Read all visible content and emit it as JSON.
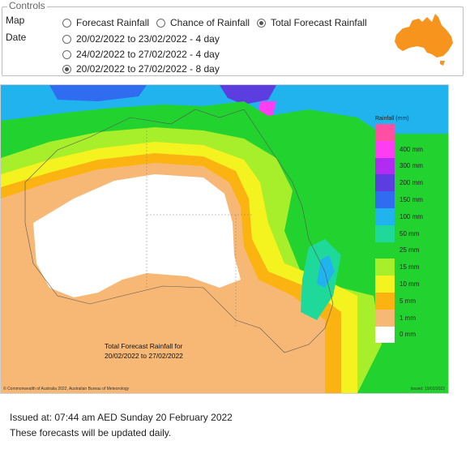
{
  "controls": {
    "legend": "Controls",
    "map_label": "Map",
    "date_label": "Date",
    "map_options": [
      {
        "label": "Forecast Rainfall",
        "selected": false
      },
      {
        "label": "Chance of Rainfall",
        "selected": false
      },
      {
        "label": "Total Forecast Rainfall",
        "selected": true
      }
    ],
    "date_options": [
      {
        "label": "20/02/2022 to 23/02/2022 - 4 day",
        "selected": false
      },
      {
        "label": "24/02/2022 to 27/02/2022 - 4 day",
        "selected": false
      },
      {
        "label": "20/02/2022 to 27/02/2022 - 8 day",
        "selected": true
      }
    ],
    "australia_icon_color": "#f7941d"
  },
  "map": {
    "legend_title": "Rainfall (mm)",
    "legend": [
      {
        "label": "",
        "color": "#ff4fa3"
      },
      {
        "label": "400 mm",
        "color": "#ff3df2"
      },
      {
        "label": "300 mm",
        "color": "#b12cf0"
      },
      {
        "label": "200 mm",
        "color": "#5b3de0"
      },
      {
        "label": "150 mm",
        "color": "#2f6cf0"
      },
      {
        "label": "100 mm",
        "color": "#20b3ee"
      },
      {
        "label": "50 mm",
        "color": "#1fd99a"
      },
      {
        "label": "25 mm",
        "color": "#22d32f"
      },
      {
        "label": "15 mm",
        "color": "#a6ef2a"
      },
      {
        "label": "10 mm",
        "color": "#f4f21f"
      },
      {
        "label": "5 mm",
        "color": "#fbb311"
      },
      {
        "label": "1 mm",
        "color": "#f7b876"
      },
      {
        "label": "0 mm",
        "color": "#ffffff"
      }
    ],
    "caption_line1": "Total Forecast Rainfall for",
    "caption_line2": "20/02/2022 to 27/02/2022",
    "copyright": "© Commonwealth of Australia 2022, Australian Bureau of Meteorology",
    "issued_small": "Issued: 19/02/2022"
  },
  "footer": {
    "issued": "Issued at: 07:44 am AED Sunday 20 February 2022",
    "note": "These forecasts will be updated daily."
  }
}
